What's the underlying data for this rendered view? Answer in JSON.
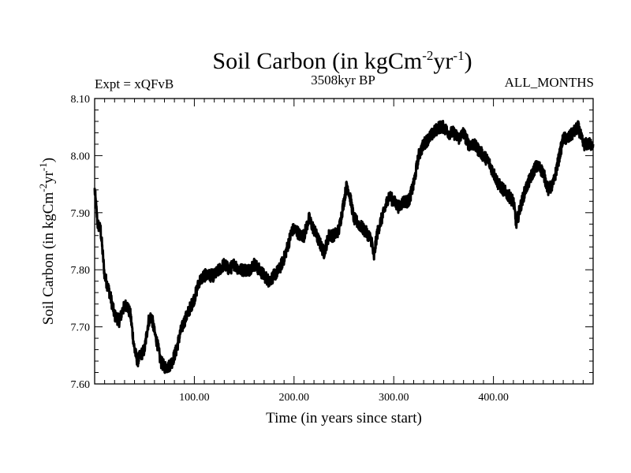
{
  "chart_data": {
    "type": "line",
    "title": "Soil Carbon (in kgCm",
    "title_sup1": "-2",
    "title_mid": "yr",
    "title_sup2": "-1",
    "title_end": ")",
    "expt_label": "Expt = xQFvB",
    "period_label": "3508kyr BP",
    "months_label": "ALL_MONTHS",
    "xlabel": "Time (in years since start)",
    "ylabel": "Soil Carbon (in kgCm",
    "ylabel_sup1": "-2",
    "ylabel_mid": "yr",
    "ylabel_sup2": "-1",
    "ylabel_end": ")",
    "xlim": [
      0,
      500
    ],
    "ylim": [
      7.6,
      8.1
    ],
    "x_ticks": [
      100,
      200,
      300,
      400
    ],
    "x_tick_labels": [
      "100.00",
      "200.00",
      "300.00",
      "400.00"
    ],
    "y_ticks": [
      7.6,
      7.7,
      7.8,
      7.9,
      8.0,
      8.1
    ],
    "y_tick_labels": [
      "7.60",
      "7.70",
      "7.80",
      "7.90",
      "8.00",
      "8.10"
    ],
    "line_color": "#000000",
    "series": [
      {
        "name": "Soil Carbon",
        "x": [
          0,
          3,
          6,
          10,
          15,
          20,
          25,
          28,
          32,
          36,
          40,
          43,
          46,
          50,
          54,
          57,
          60,
          63,
          66,
          70,
          74,
          78,
          82,
          86,
          90,
          95,
          100,
          105,
          110,
          115,
          120,
          125,
          130,
          135,
          140,
          145,
          150,
          155,
          160,
          165,
          170,
          175,
          180,
          185,
          190,
          195,
          198,
          202,
          206,
          210,
          215,
          220,
          225,
          230,
          235,
          240,
          245,
          250,
          253,
          256,
          260,
          265,
          270,
          275,
          278,
          280,
          283,
          286,
          290,
          295,
          300,
          305,
          310,
          315,
          320,
          325,
          330,
          335,
          340,
          345,
          350,
          355,
          360,
          365,
          370,
          375,
          380,
          385,
          390,
          395,
          400,
          405,
          410,
          415,
          420,
          423,
          427,
          432,
          437,
          442,
          446,
          450,
          455,
          460,
          465,
          470,
          475,
          480,
          485,
          490,
          495,
          500
        ],
        "values": [
          7.94,
          7.88,
          7.87,
          7.79,
          7.76,
          7.72,
          7.71,
          7.73,
          7.74,
          7.72,
          7.66,
          7.64,
          7.65,
          7.66,
          7.71,
          7.72,
          7.69,
          7.67,
          7.64,
          7.63,
          7.63,
          7.64,
          7.66,
          7.69,
          7.71,
          7.73,
          7.75,
          7.78,
          7.79,
          7.79,
          7.79,
          7.8,
          7.81,
          7.8,
          7.81,
          7.8,
          7.8,
          7.8,
          7.81,
          7.8,
          7.79,
          7.78,
          7.79,
          7.8,
          7.82,
          7.85,
          7.87,
          7.87,
          7.86,
          7.86,
          7.89,
          7.87,
          7.85,
          7.83,
          7.86,
          7.86,
          7.87,
          7.92,
          7.95,
          7.93,
          7.89,
          7.88,
          7.87,
          7.86,
          7.85,
          7.82,
          7.86,
          7.88,
          7.9,
          7.93,
          7.92,
          7.91,
          7.92,
          7.92,
          7.95,
          8.0,
          8.02,
          8.03,
          8.04,
          8.05,
          8.05,
          8.04,
          8.04,
          8.03,
          8.04,
          8.02,
          8.02,
          8.01,
          8.0,
          7.99,
          7.97,
          7.95,
          7.94,
          7.93,
          7.92,
          7.88,
          7.91,
          7.94,
          7.96,
          7.98,
          7.98,
          7.97,
          7.94,
          7.95,
          7.99,
          8.03,
          8.03,
          8.04,
          8.05,
          8.02,
          8.02,
          8.02
        ]
      }
    ]
  }
}
